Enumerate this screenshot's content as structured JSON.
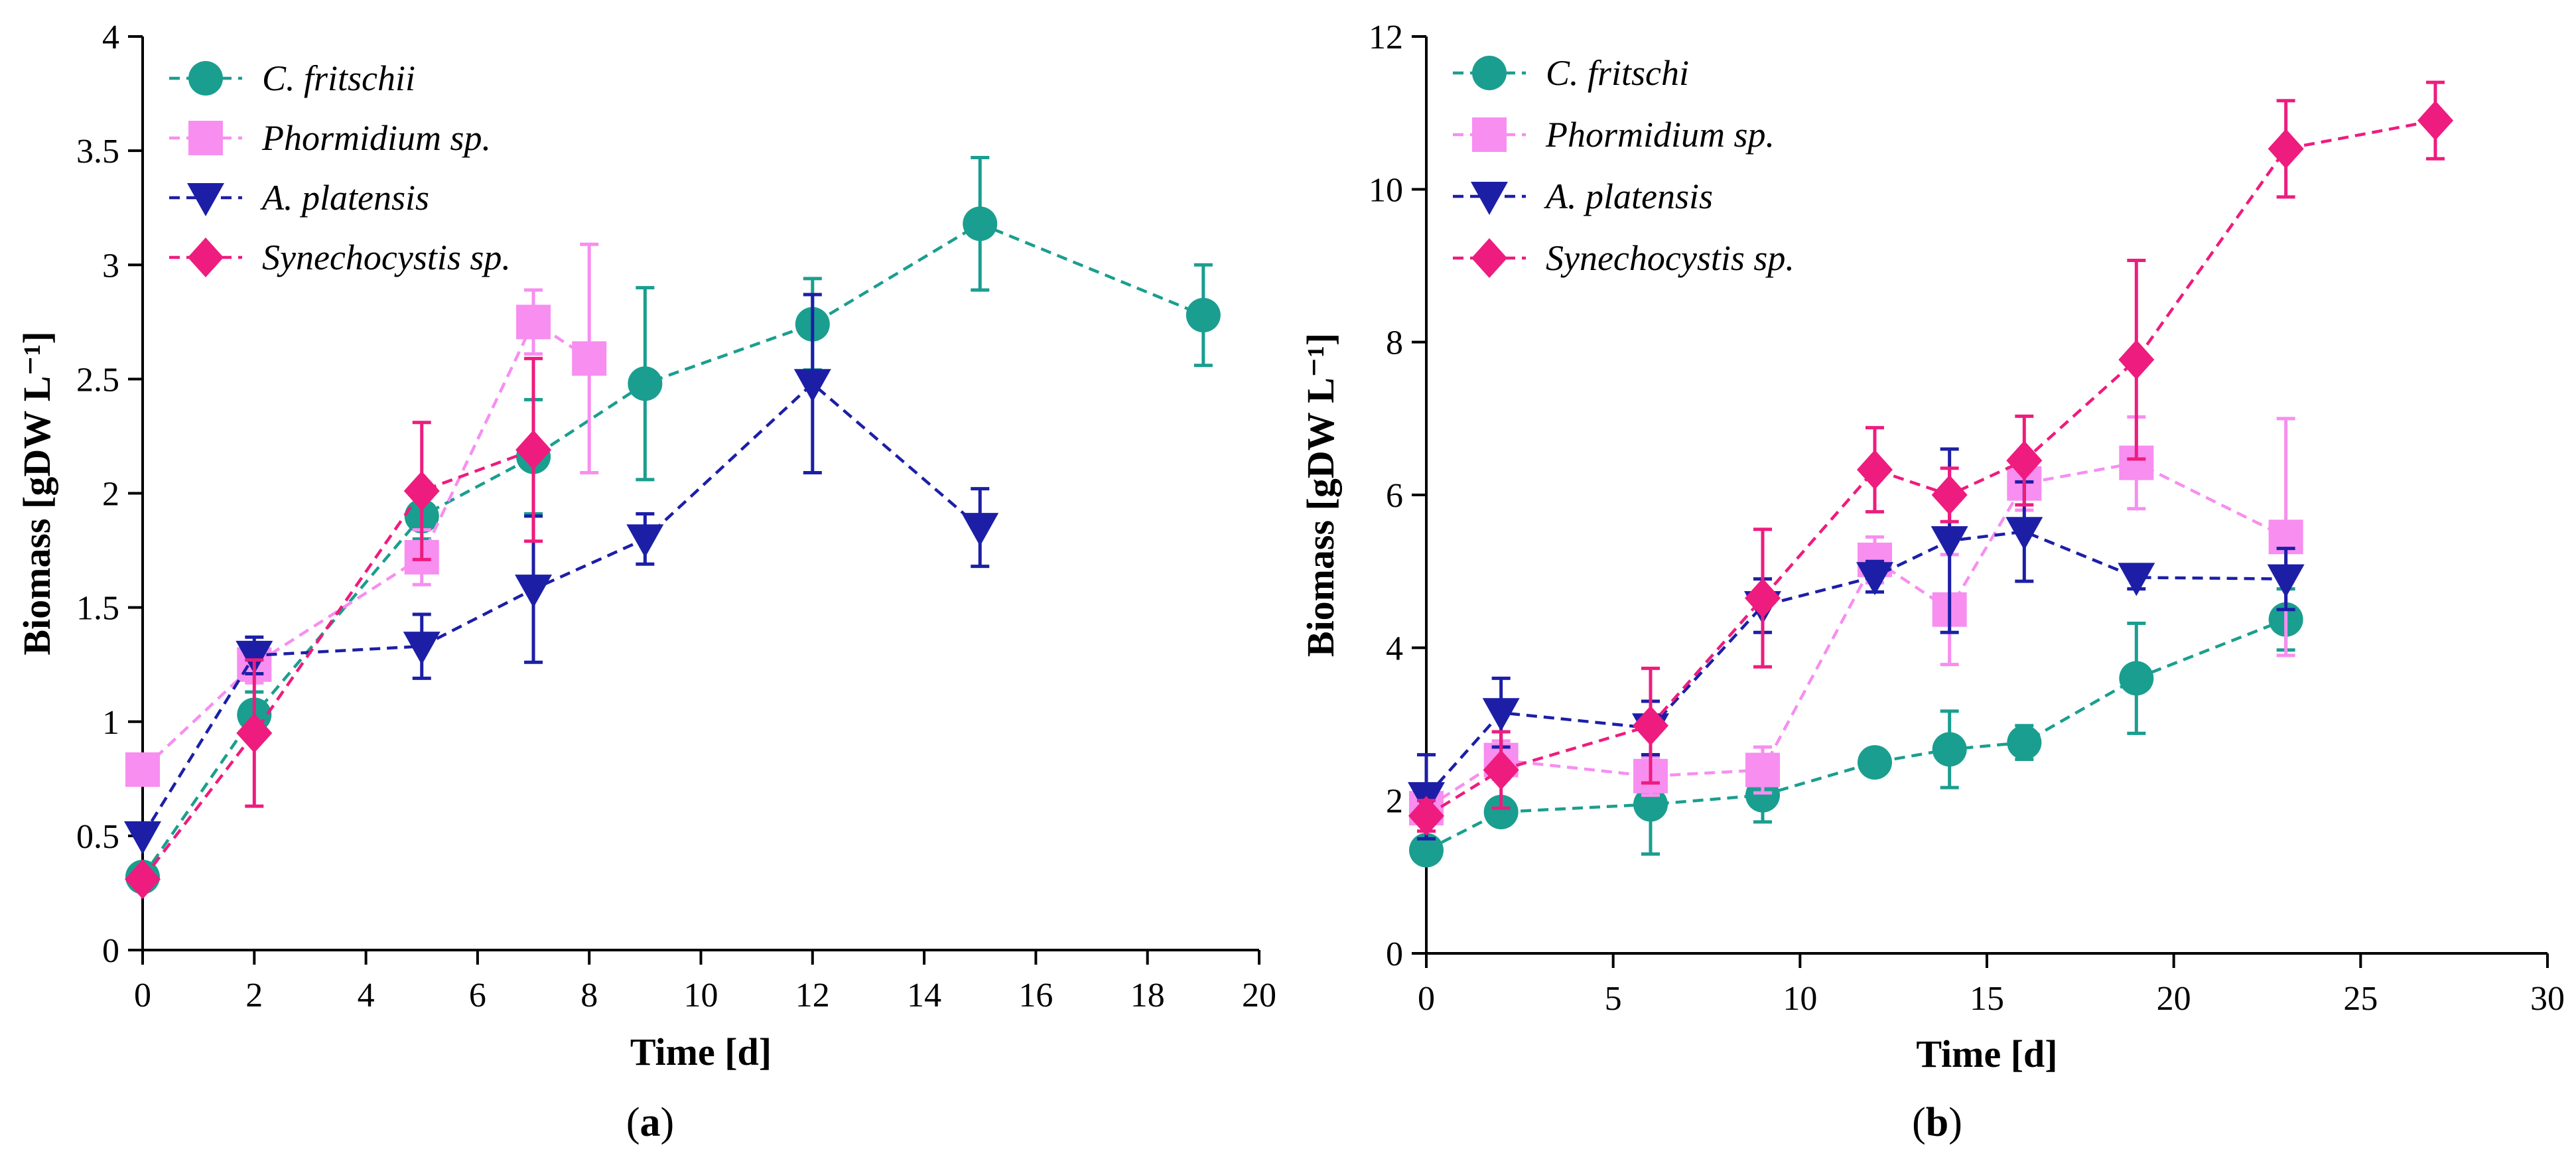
{
  "colors": {
    "c_fritschii": "#1a9e8f",
    "phormidium": "#f78ef0",
    "a_platensis": "#1c1fa6",
    "synechocystis": "#ee1c7e",
    "axis": "#000000"
  },
  "chart_data": [
    {
      "type": "line",
      "panel_label": "(a)",
      "panel_letter": "a",
      "xlabel": "Time [d]",
      "ylabel": "Biomass [gDW L⁻¹]",
      "xlim": [
        0,
        20
      ],
      "ylim": [
        0,
        4
      ],
      "xticks": [
        0,
        2,
        4,
        6,
        8,
        10,
        12,
        14,
        16,
        18,
        20
      ],
      "xtick_labels": [
        "0",
        "2",
        "4",
        "6",
        "8",
        "10",
        "12",
        "14",
        "16",
        "18",
        "20"
      ],
      "yticks": [
        0,
        0.5,
        1,
        1.5,
        2,
        2.5,
        3,
        3.5,
        4
      ],
      "ytick_labels": [
        "0",
        "0.5",
        "1",
        "1.5",
        "2",
        "2.5",
        "3",
        "3.5",
        "4"
      ],
      "grid": false,
      "legend_position": "top-left",
      "series": [
        {
          "name": "C. fritschii",
          "color": "#1a9e8f",
          "marker": "circle",
          "x": [
            0,
            2,
            5,
            7,
            9,
            12,
            15,
            19
          ],
          "y": [
            0.32,
            1.03,
            1.9,
            2.16,
            2.48,
            2.74,
            3.18,
            2.78
          ],
          "err": [
            0,
            0.1,
            0.1,
            0.25,
            0.42,
            0.2,
            0.29,
            0.22
          ]
        },
        {
          "name": "Phormidium sp.",
          "color": "#f78ef0",
          "marker": "square",
          "x": [
            0,
            2,
            5,
            7,
            8
          ],
          "y": [
            0.79,
            1.25,
            1.72,
            2.75,
            2.59
          ],
          "err": [
            0,
            0.08,
            0.12,
            0.14,
            0.5
          ]
        },
        {
          "name": "A. platensis",
          "color": "#1c1fa6",
          "marker": "triangle-down",
          "x": [
            0,
            2,
            5,
            7,
            9,
            12,
            15
          ],
          "y": [
            0.5,
            1.29,
            1.33,
            1.58,
            1.8,
            2.48,
            1.85
          ],
          "err": [
            0,
            0.08,
            0.14,
            0.32,
            0.11,
            0.39,
            0.17
          ]
        },
        {
          "name": "Synechocystis sp.",
          "color": "#ee1c7e",
          "marker": "diamond",
          "x": [
            0,
            2,
            5,
            7
          ],
          "y": [
            0.31,
            0.95,
            2.01,
            2.19
          ],
          "err": [
            0,
            0.32,
            0.3,
            0.4
          ]
        }
      ]
    },
    {
      "type": "line",
      "panel_label": "(b)",
      "panel_letter": "b",
      "xlabel": "Time [d]",
      "ylabel": "Biomass [gDW L⁻¹]",
      "xlim": [
        0,
        30
      ],
      "ylim": [
        0,
        12
      ],
      "xticks": [
        0,
        5,
        10,
        15,
        20,
        25,
        30
      ],
      "xtick_labels": [
        "0",
        "5",
        "10",
        "15",
        "20",
        "25",
        "30"
      ],
      "yticks": [
        0,
        2,
        4,
        6,
        8,
        10,
        12
      ],
      "ytick_labels": [
        "0",
        "2",
        "4",
        "6",
        "8",
        "10",
        "12"
      ],
      "grid": false,
      "legend_position": "top-left",
      "series": [
        {
          "name": "C. fritschi",
          "color": "#1a9e8f",
          "marker": "circle",
          "x": [
            0,
            2,
            6,
            9,
            12,
            14,
            16,
            19,
            23
          ],
          "y": [
            1.35,
            1.85,
            1.95,
            2.07,
            2.5,
            2.67,
            2.76,
            3.6,
            4.37
          ],
          "err": [
            0,
            0.1,
            0.65,
            0.35,
            0.1,
            0.5,
            0.22,
            0.72,
            0.4
          ]
        },
        {
          "name": "Phormidium sp.",
          "color": "#f78ef0",
          "marker": "square",
          "x": [
            0,
            2,
            6,
            9,
            12,
            14,
            16,
            19,
            23
          ],
          "y": [
            1.9,
            2.53,
            2.32,
            2.4,
            5.15,
            4.5,
            6.15,
            6.42,
            5.45
          ],
          "err": [
            0,
            0.25,
            0.25,
            0.3,
            0.3,
            0.72,
            0.35,
            0.6,
            1.55
          ]
        },
        {
          "name": "A. platensis",
          "color": "#1c1fa6",
          "marker": "triangle-down",
          "x": [
            0,
            2,
            6,
            9,
            12,
            14,
            16,
            19,
            23
          ],
          "y": [
            2.05,
            3.15,
            2.95,
            4.55,
            4.93,
            5.4,
            5.52,
            4.92,
            4.9
          ],
          "err": [
            0.55,
            0.45,
            0.35,
            0.35,
            0.2,
            1.2,
            0.65,
            0.15,
            0.4
          ]
        },
        {
          "name": "Synechocystis sp.",
          "color": "#ee1c7e",
          "marker": "diamond",
          "x": [
            0,
            2,
            6,
            9,
            12,
            14,
            16,
            19,
            23,
            27
          ],
          "y": [
            1.8,
            2.4,
            2.98,
            4.65,
            6.33,
            6.0,
            6.45,
            7.77,
            10.53,
            10.9
          ],
          "err": [
            0.2,
            0.5,
            0.75,
            0.9,
            0.55,
            0.35,
            0.58,
            1.3,
            0.63,
            0.5
          ]
        }
      ]
    }
  ]
}
